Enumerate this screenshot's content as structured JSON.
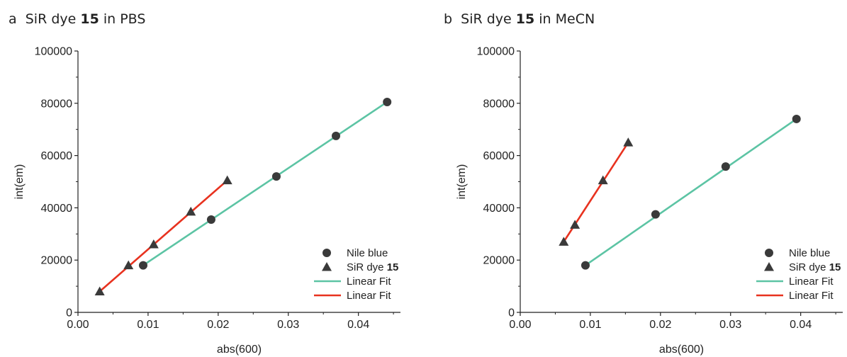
{
  "panels": [
    {
      "letter": "a",
      "title_pre": "SiR dye ",
      "title_bold": "15",
      "title_post": " in PBS",
      "xlabel": "abs(600)",
      "ylabel": "int(em)",
      "xticks": [
        "0.00",
        "0.01",
        "0.02",
        "0.03",
        "0.04"
      ],
      "yticks": [
        "0",
        "20000",
        "40000",
        "60000",
        "80000",
        "100000"
      ],
      "legend": [
        {
          "kind": "circle",
          "label": "Nile blue",
          "bold": ""
        },
        {
          "kind": "triangle",
          "label": "SiR dye ",
          "bold": "15"
        },
        {
          "kind": "line",
          "color": "#5cc4a4",
          "label": "Linear Fit",
          "bold": ""
        },
        {
          "kind": "line",
          "color": "#e8321f",
          "label": "Linear Fit",
          "bold": ""
        }
      ]
    },
    {
      "letter": "b",
      "title_pre": "SiR dye ",
      "title_bold": "15",
      "title_post": " in MeCN",
      "xlabel": "abs(600)",
      "ylabel": "int(em)",
      "xticks": [
        "0.00",
        "0.01",
        "0.02",
        "0.03",
        "0.04"
      ],
      "yticks": [
        "0",
        "20000",
        "40000",
        "60000",
        "80000",
        "100000"
      ],
      "legend": [
        {
          "kind": "circle",
          "label": "Nile blue",
          "bold": ""
        },
        {
          "kind": "triangle",
          "label": "SiR dye ",
          "bold": "15"
        },
        {
          "kind": "line",
          "color": "#5cc4a4",
          "label": "Linear Fit",
          "bold": ""
        },
        {
          "kind": "line",
          "color": "#e8321f",
          "label": "Linear Fit",
          "bold": ""
        }
      ]
    }
  ],
  "chart_data": [
    {
      "type": "scatter",
      "xlabel": "abs(600)",
      "ylabel": "int(em)",
      "xlim": [
        0,
        0.046
      ],
      "ylim": [
        0,
        100000
      ],
      "series": [
        {
          "name": "Nile blue",
          "marker": "circle",
          "color": "#3a3a3a",
          "x": [
            0.0093,
            0.019,
            0.0283,
            0.0368,
            0.0441
          ],
          "y": [
            18000,
            35500,
            52000,
            67500,
            80500
          ]
        },
        {
          "name": "SiR dye 15",
          "marker": "triangle",
          "color": "#3a3a3a",
          "x": [
            0.0031,
            0.0072,
            0.0108,
            0.0161,
            0.0213
          ],
          "y": [
            8000,
            18000,
            26000,
            38500,
            50500
          ]
        },
        {
          "name": "Linear Fit",
          "type": "line",
          "color": "#5cc4a4",
          "x": [
            0.0093,
            0.0441
          ],
          "y": [
            18000,
            80500
          ]
        },
        {
          "name": "Linear Fit",
          "type": "line",
          "color": "#e8321f",
          "x": [
            0.0031,
            0.0213
          ],
          "y": [
            8000,
            50500
          ]
        }
      ]
    },
    {
      "type": "scatter",
      "xlabel": "abs(600)",
      "ylabel": "int(em)",
      "xlim": [
        0,
        0.046
      ],
      "ylim": [
        0,
        100000
      ],
      "series": [
        {
          "name": "Nile blue",
          "marker": "circle",
          "color": "#3a3a3a",
          "x": [
            0.0093,
            0.0193,
            0.0293,
            0.0394
          ],
          "y": [
            18000,
            37500,
            55800,
            74000
          ]
        },
        {
          "name": "SiR dye 15",
          "marker": "triangle",
          "color": "#3a3a3a",
          "x": [
            0.0062,
            0.0078,
            0.0118,
            0.0154
          ],
          "y": [
            27000,
            33500,
            50500,
            65000
          ]
        },
        {
          "name": "Linear Fit",
          "type": "line",
          "color": "#5cc4a4",
          "x": [
            0.0093,
            0.0394
          ],
          "y": [
            18000,
            74000
          ]
        },
        {
          "name": "Linear Fit",
          "type": "line",
          "color": "#e8321f",
          "x": [
            0.0062,
            0.0154
          ],
          "y": [
            27000,
            65000
          ]
        }
      ]
    }
  ]
}
